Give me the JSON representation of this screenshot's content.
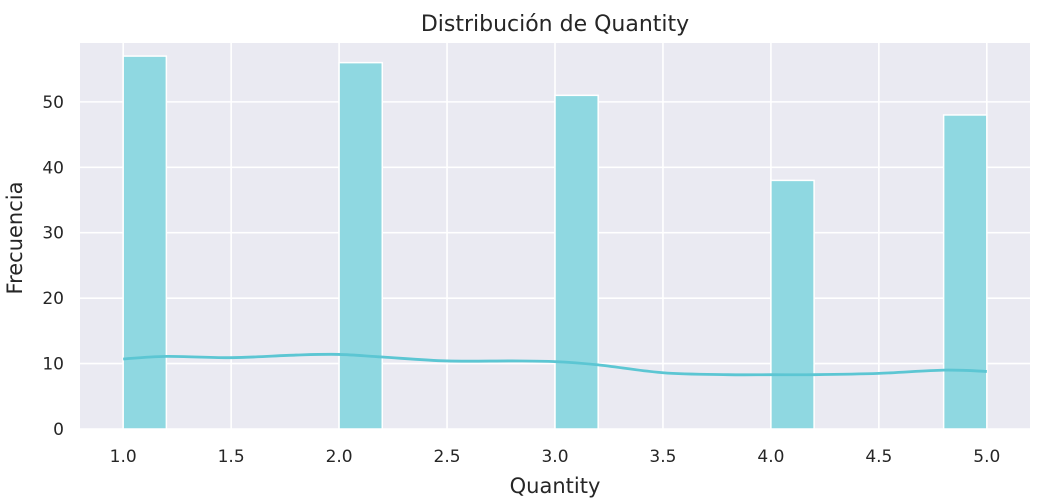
{
  "chart_data": {
    "type": "bar",
    "title": "Distribución de Quantity",
    "xlabel": "Quantity",
    "ylabel": "Frecuencia",
    "xlim": [
      0.8,
      5.2
    ],
    "ylim": [
      0,
      59
    ],
    "xticks": [
      "1.0",
      "1.5",
      "2.0",
      "2.5",
      "3.0",
      "3.5",
      "4.0",
      "4.5",
      "5.0"
    ],
    "xtick_values": [
      1.0,
      1.5,
      2.0,
      2.5,
      3.0,
      3.5,
      4.0,
      4.5,
      5.0
    ],
    "yticks": [
      "0",
      "10",
      "20",
      "30",
      "40",
      "50"
    ],
    "ytick_values": [
      0,
      10,
      20,
      30,
      40,
      50
    ],
    "grid": true,
    "bins": [
      {
        "x0": 1.0,
        "x1": 1.2,
        "value": 57
      },
      {
        "x0": 2.0,
        "x1": 2.2,
        "value": 56
      },
      {
        "x0": 3.0,
        "x1": 3.2,
        "value": 51
      },
      {
        "x0": 4.0,
        "x1": 4.2,
        "value": 38
      },
      {
        "x0": 4.8,
        "x1": 5.0,
        "value": 48
      }
    ],
    "kde": {
      "x": [
        1.0,
        1.2,
        1.5,
        1.8,
        2.0,
        2.2,
        2.5,
        2.8,
        3.0,
        3.2,
        3.5,
        3.8,
        4.0,
        4.2,
        4.5,
        4.8,
        5.0
      ],
      "y": [
        10.7,
        11.1,
        10.9,
        11.3,
        11.4,
        11.0,
        10.4,
        10.4,
        10.3,
        9.8,
        8.6,
        8.3,
        8.3,
        8.3,
        8.5,
        9.0,
        8.8
      ]
    },
    "colors": {
      "bar_fill": "#8fd8e1",
      "bar_edge": "#ffffff",
      "kde_line": "#5cc6d3",
      "plot_bg": "#eaeaf2",
      "grid": "#ffffff"
    }
  }
}
